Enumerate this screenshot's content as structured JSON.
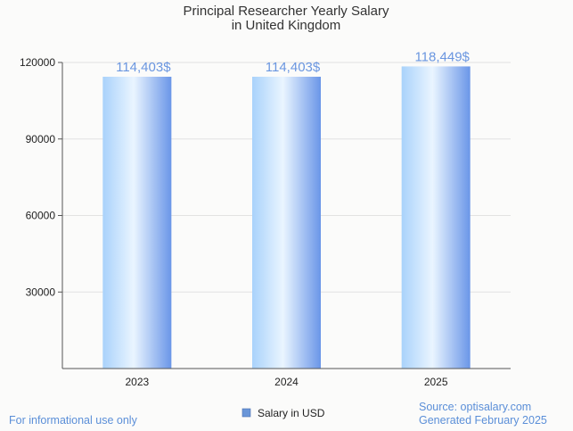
{
  "chart_data": {
    "type": "bar",
    "title_lines": [
      "Principal Researcher Yearly Salary",
      "in United Kingdom"
    ],
    "categories": [
      "2023",
      "2024",
      "2025"
    ],
    "series": [
      {
        "name": "Salary in USD",
        "values": [
          114403,
          114403,
          118449
        ]
      }
    ],
    "data_labels": [
      "114,403$",
      "114,403$",
      "118,449$"
    ],
    "y_ticks": [
      30000,
      60000,
      90000,
      120000
    ],
    "ylim": [
      0,
      120000
    ],
    "grid": true,
    "legend_position": "bottom-center"
  },
  "footer": {
    "disclaimer": "For informational use only",
    "source": "Source: optisalary.com",
    "generated": "Generated February 2025"
  },
  "colors": {
    "bar_light": "#eaf5ff",
    "bar_mid": "#a9d2fb",
    "bar_dark": "#6a96e8",
    "label": "#6a96e0",
    "legend_swatch": "#6a96d8",
    "footer": "#5b8fd8"
  }
}
